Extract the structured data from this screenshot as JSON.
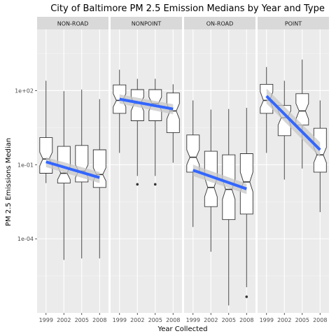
{
  "chart_data": {
    "type": "boxplot",
    "title": "City of Baltimore PM 2.5 Emission Medians by Year and Type",
    "xlabel": "Year Collected",
    "ylabel": "PM 2.5 Emissions Median",
    "y_scale": "log10",
    "ylim": [
      1e-07,
      30000
    ],
    "y_ticks": [
      {
        "value": 0.0001,
        "label": "1e-04"
      },
      {
        "value": 0.1,
        "label": "1e-01"
      },
      {
        "value": 100,
        "label": "1e+02"
      }
    ],
    "categories": [
      "1999",
      "2002",
      "2005",
      "2008"
    ],
    "notched": true,
    "grid": true,
    "colors": {
      "panel_bg": "#ebebeb",
      "grid_major": "#ffffff",
      "grid_minor": "#f5f5f5",
      "strip_bg": "#d9d9d9",
      "box_fill": "#ffffff",
      "box_line": "#333333",
      "trend_line": "#3366ff",
      "trend_band": "#c7c7c7"
    },
    "panels": [
      {
        "name": "NON-ROAD",
        "boxes": [
          {
            "year": "1999",
            "min": 0.018,
            "q1": 0.045,
            "median": 0.17,
            "q3": 1.25,
            "max": 250,
            "notch_low": 0.09,
            "notch_high": 0.32,
            "outliers": []
          },
          {
            "year": "2002",
            "min": 1.4e-05,
            "q1": 0.018,
            "median": 0.045,
            "q3": 0.55,
            "max": 95,
            "notch_low": 0.025,
            "notch_high": 0.09,
            "outliers": []
          },
          {
            "year": "2005",
            "min": 1.6e-05,
            "q1": 0.02,
            "median": 0.055,
            "q3": 0.6,
            "max": 110,
            "notch_low": 0.03,
            "notch_high": 0.1,
            "outliers": []
          },
          {
            "year": "2008",
            "min": 1.6e-05,
            "q1": 0.012,
            "median": 0.04,
            "q3": 0.4,
            "max": 45,
            "notch_low": 0.022,
            "notch_high": 0.075,
            "outliers": []
          }
        ],
        "trend": {
          "start": 0.13,
          "end": 0.03,
          "band_start": [
            0.08,
            0.2
          ],
          "band_end": [
            0.018,
            0.05
          ]
        }
      },
      {
        "name": "NONPOINT",
        "boxes": [
          {
            "year": "1999",
            "min": 0.3,
            "q1": 12,
            "median": 40,
            "q3": 170,
            "max": 700,
            "notch_low": 22,
            "notch_high": 75,
            "outliers": []
          },
          {
            "year": "2002",
            "min": 0.035,
            "q1": 6,
            "median": 30,
            "q3": 110,
            "max": 300,
            "notch_low": 15,
            "notch_high": 55,
            "outliers": [
              0.016
            ]
          },
          {
            "year": "2005",
            "min": 0.035,
            "q1": 6,
            "median": 30,
            "q3": 110,
            "max": 300,
            "notch_low": 15,
            "notch_high": 55,
            "outliers": [
              0.016
            ]
          },
          {
            "year": "2008",
            "min": 0.12,
            "q1": 2,
            "median": 15,
            "q3": 80,
            "max": 180,
            "notch_low": 7,
            "notch_high": 30,
            "outliers": []
          }
        ],
        "trend": {
          "start": 45,
          "end": 18,
          "band_start": [
            30,
            70
          ],
          "band_end": [
            11,
            28
          ]
        }
      },
      {
        "name": "ON-ROAD",
        "boxes": [
          {
            "year": "1999",
            "min": 0.0003,
            "q1": 0.05,
            "median": 0.2,
            "q3": 1.6,
            "max": 40,
            "notch_low": 0.1,
            "notch_high": 0.4,
            "outliers": []
          },
          {
            "year": "2002",
            "min": 3e-05,
            "q1": 0.002,
            "median": 0.012,
            "q3": 0.35,
            "max": 17,
            "notch_low": 0.005,
            "notch_high": 0.03,
            "outliers": []
          },
          {
            "year": "2005",
            "min": 2e-07,
            "q1": 0.0006,
            "median": 0.01,
            "q3": 0.25,
            "max": 18,
            "notch_low": 0.004,
            "notch_high": 0.025,
            "outliers": []
          },
          {
            "year": "2008",
            "min": 1.1e-06,
            "q1": 0.001,
            "median": 0.02,
            "q3": 0.28,
            "max": 20,
            "notch_low": 0.008,
            "notch_high": 0.05,
            "outliers": [
              4.5e-07
            ]
          }
        ],
        "trend": {
          "start": 0.06,
          "end": 0.0105,
          "band_start": [
            0.035,
            0.1
          ],
          "band_end": [
            0.0065,
            0.017
          ]
        }
      },
      {
        "name": "POINT",
        "boxes": [
          {
            "year": "1999",
            "min": 0.3,
            "q1": 12,
            "median": 40,
            "q3": 180,
            "max": 900,
            "notch_low": 20,
            "notch_high": 90,
            "outliers": []
          },
          {
            "year": "2002",
            "min": 0.025,
            "q1": 1.5,
            "median": 8,
            "q3": 25,
            "max": 250,
            "notch_low": 4,
            "notch_high": 15,
            "outliers": []
          },
          {
            "year": "2005",
            "min": 0.07,
            "q1": 4,
            "median": 15,
            "q3": 75,
            "max": 1800,
            "notch_low": 7,
            "notch_high": 30,
            "outliers": []
          },
          {
            "year": "2008",
            "min": 0.0012,
            "q1": 0.05,
            "median": 0.25,
            "q3": 3,
            "max": 40,
            "notch_low": 0.12,
            "notch_high": 0.5,
            "outliers": []
          }
        ],
        "trend": {
          "start": 60,
          "end": 0.4,
          "band_start": [
            30,
            120
          ],
          "band_end": [
            0.2,
            0.8
          ]
        }
      }
    ]
  }
}
